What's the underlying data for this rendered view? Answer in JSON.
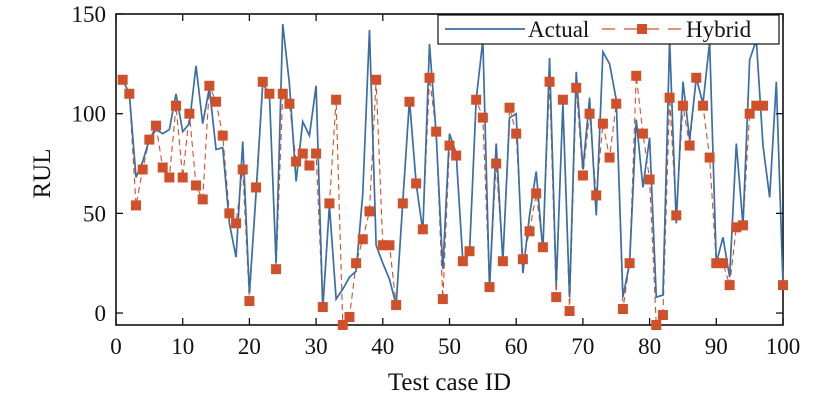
{
  "chart_data": {
    "type": "line",
    "title": "",
    "xlabel": "Test case ID",
    "ylabel": "RUL",
    "xlim": [
      0,
      100
    ],
    "ylim": [
      -6,
      150
    ],
    "xticks": [
      0,
      10,
      20,
      30,
      40,
      50,
      60,
      70,
      80,
      90,
      100
    ],
    "yticks": [
      0,
      50,
      100,
      150
    ],
    "grid": false,
    "legend_position": "top-right",
    "x": [
      1,
      2,
      3,
      4,
      5,
      6,
      7,
      8,
      9,
      10,
      11,
      12,
      13,
      14,
      15,
      16,
      17,
      18,
      19,
      20,
      21,
      22,
      23,
      24,
      25,
      26,
      27,
      28,
      29,
      30,
      31,
      32,
      33,
      34,
      35,
      36,
      37,
      38,
      39,
      40,
      41,
      42,
      43,
      44,
      45,
      46,
      47,
      48,
      49,
      50,
      51,
      52,
      53,
      54,
      55,
      56,
      57,
      58,
      59,
      60,
      61,
      62,
      63,
      64,
      65,
      66,
      67,
      68,
      69,
      70,
      71,
      72,
      73,
      74,
      75,
      76,
      77,
      78,
      79,
      80,
      81,
      82,
      83,
      84,
      85,
      86,
      87,
      88,
      89,
      90,
      91,
      92,
      93,
      94,
      95,
      96,
      97,
      98,
      99,
      100
    ],
    "series": [
      {
        "name": "Actual",
        "color": "#3a6ea5",
        "style": "solid",
        "values": [
          117,
          110,
          68,
          76,
          87,
          92,
          90,
          92,
          110,
          91,
          95,
          124,
          95,
          113,
          82,
          83,
          45,
          28,
          86,
          10,
          60,
          115,
          110,
          25,
          145,
          115,
          66,
          96,
          89,
          114,
          2,
          54,
          7,
          12,
          18,
          21,
          60,
          142,
          34,
          25,
          17,
          4,
          56,
          107,
          65,
          41,
          135,
          90,
          22,
          90,
          80,
          26,
          30,
          107,
          137,
          12,
          85,
          26,
          98,
          100,
          20,
          49,
          71,
          31,
          128,
          14,
          105,
          8,
          121,
          72,
          108,
          49,
          131,
          125,
          107,
          8,
          25,
          97,
          63,
          88,
          8,
          9,
          137,
          45,
          116,
          87,
          118,
          105,
          136,
          25,
          38,
          18,
          85,
          44,
          127,
          137,
          84,
          58,
          116,
          14
        ]
      },
      {
        "name": "Hybrid",
        "color": "#d0502a",
        "style": "dashed",
        "marker": "square",
        "values": [
          117,
          110,
          54,
          72,
          87,
          94,
          73,
          68,
          104,
          68,
          100,
          64,
          57,
          114,
          106,
          89,
          50,
          45,
          72,
          6,
          63,
          116,
          110,
          22,
          110,
          105,
          76,
          80,
          74,
          80,
          3,
          55,
          107,
          -6,
          -2,
          25,
          37,
          51,
          117,
          34,
          34,
          4,
          55,
          106,
          65,
          42,
          118,
          91,
          7,
          84,
          79,
          26,
          31,
          107,
          98,
          13,
          75,
          26,
          103,
          90,
          27,
          41,
          60,
          33,
          116,
          8,
          107,
          1,
          113,
          69,
          100,
          59,
          95,
          78,
          105,
          2,
          25,
          119,
          90,
          67,
          -6,
          -1,
          108,
          49,
          104,
          84,
          118,
          104,
          78,
          25,
          25,
          14,
          43,
          44,
          100,
          104,
          104,
          null,
          null,
          14
        ]
      }
    ]
  }
}
